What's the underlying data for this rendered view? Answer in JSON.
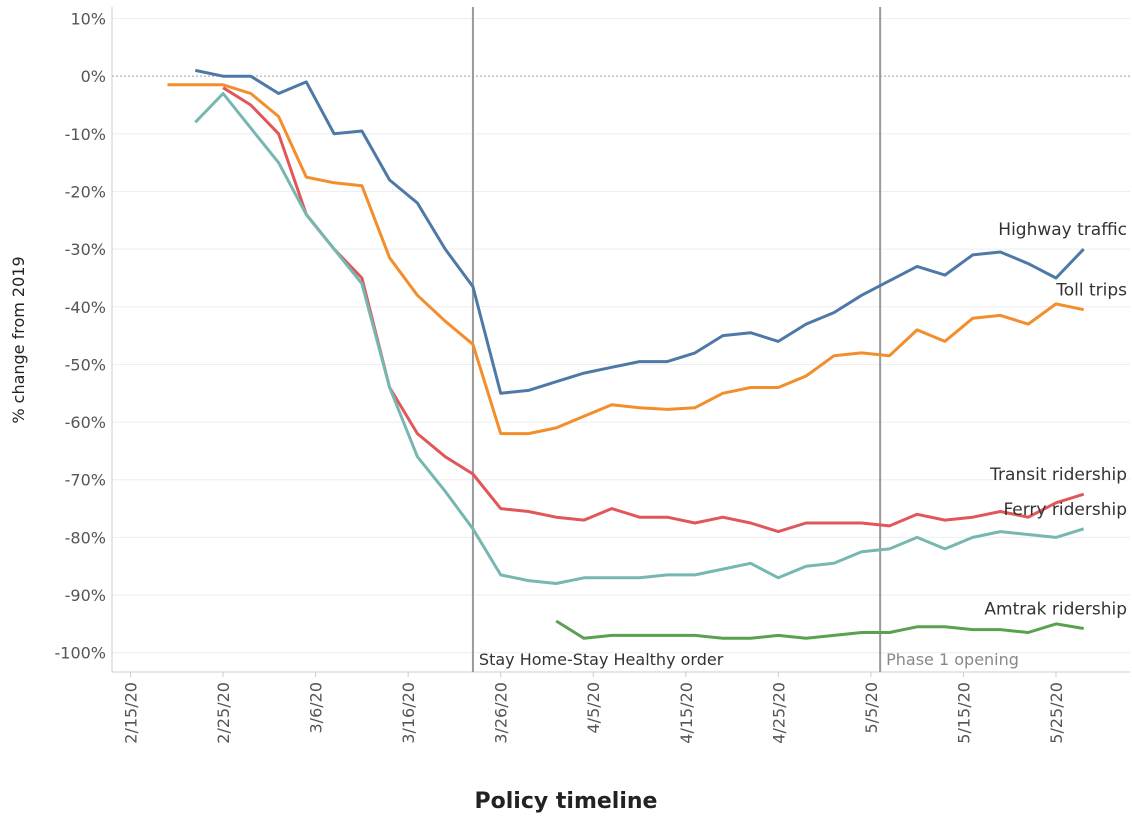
{
  "chart_data": {
    "type": "line",
    "x_label": "Policy timeline",
    "y_label": "% change from 2019",
    "x": [
      "2/19/20",
      "2/22/20",
      "2/25/20",
      "2/28/20",
      "3/2/20",
      "3/5/20",
      "3/8/20",
      "3/11/20",
      "3/14/20",
      "3/17/20",
      "3/20/20",
      "3/23/20",
      "3/26/20",
      "3/29/20",
      "4/1/20",
      "4/4/20",
      "4/7/20",
      "4/10/20",
      "4/13/20",
      "4/16/20",
      "4/19/20",
      "4/22/20",
      "4/25/20",
      "4/28/20",
      "5/1/20",
      "5/4/20",
      "5/7/20",
      "5/10/20",
      "5/13/20",
      "5/16/20",
      "5/19/20",
      "5/22/20",
      "5/25/20",
      "5/28/20"
    ],
    "xlim": [
      "2/13/20",
      "6/2/20"
    ],
    "xticks": [
      "2/15/20",
      "2/25/20",
      "3/6/20",
      "3/16/20",
      "3/26/20",
      "4/5/20",
      "4/15/20",
      "4/25/20",
      "5/5/20",
      "5/15/20",
      "5/25/20"
    ],
    "ylim": [
      -103,
      12
    ],
    "yticks": [
      {
        "value": 10,
        "label": "10%"
      },
      {
        "value": 0,
        "label": "0%"
      },
      {
        "value": -10,
        "label": "-10%"
      },
      {
        "value": -20,
        "label": "-20%"
      },
      {
        "value": -30,
        "label": "-30%"
      },
      {
        "value": -40,
        "label": "-40%"
      },
      {
        "value": -50,
        "label": "-50%"
      },
      {
        "value": -60,
        "label": "-60%"
      },
      {
        "value": -70,
        "label": "-70%"
      },
      {
        "value": -80,
        "label": "-80%"
      },
      {
        "value": -90,
        "label": "-90%"
      },
      {
        "value": -100,
        "label": "-100%"
      }
    ],
    "grid": true,
    "series": [
      {
        "name": "Highway traffic",
        "color": "#4e79a7",
        "values": [
          null,
          1,
          0,
          0,
          -3,
          -1,
          -10,
          -9.5,
          -18,
          -22,
          -30,
          -36.5,
          -55,
          -54.5,
          -53,
          -51.5,
          -50.5,
          -49.5,
          -49.5,
          -48,
          -45,
          -44.5,
          -46,
          -43,
          -41,
          -38,
          -35.5,
          -33,
          -34.5,
          -31,
          -30.5,
          -32.5,
          -35,
          -30
        ]
      },
      {
        "name": "Toll trips",
        "color": "#f28e2b",
        "values": [
          -1.5,
          -1.5,
          -1.5,
          -3,
          -7,
          -17.5,
          -18.5,
          -19,
          -31.5,
          -38,
          -42.5,
          -46.5,
          -62,
          -62,
          -61,
          -59,
          -57,
          -57.5,
          -57.8,
          -57.5,
          -55,
          -54,
          -54,
          -52,
          -48.5,
          -48,
          -48.5,
          -44,
          -46,
          -42,
          -41.5,
          -43,
          -39.5,
          -40.5
        ]
      },
      {
        "name": "Transit ridership",
        "color": "#e15759",
        "values": [
          null,
          null,
          -2,
          -5,
          -10,
          -24,
          -30,
          -35,
          -54,
          -62,
          -66,
          -69,
          -75,
          -75.5,
          -76.5,
          -77,
          -75,
          -76.5,
          -76.5,
          -77.5,
          -76.5,
          -77.5,
          -79,
          -77.5,
          -77.5,
          -77.5,
          -78,
          -76,
          -77,
          -76.5,
          -75.5,
          -76.5,
          -74,
          -72.5
        ]
      },
      {
        "name": "Ferry ridership",
        "color": "#76b7b2",
        "values": [
          null,
          -8,
          -3,
          -9,
          -15,
          -24,
          -30,
          -36,
          -54,
          -66,
          -72,
          -78.5,
          -86.5,
          -87.5,
          -88,
          -87,
          -87,
          -87,
          -86.5,
          -86.5,
          -85.5,
          -84.5,
          -87,
          -85,
          -84.5,
          -82.5,
          -82,
          -80,
          -82,
          -80,
          -79,
          -79.5,
          -80,
          -78.5
        ]
      },
      {
        "name": "Amtrak ridership",
        "color": "#59a14f",
        "values": [
          null,
          null,
          null,
          null,
          null,
          null,
          null,
          null,
          null,
          null,
          null,
          null,
          null,
          null,
          -94.5,
          -97.5,
          -97,
          -97,
          -97,
          -97,
          -97.5,
          -97.5,
          -97,
          -97.5,
          -97,
          -96.5,
          -96.5,
          -95.5,
          -95.5,
          -96,
          -96,
          -96.5,
          -95,
          -95.8
        ]
      }
    ],
    "annotations": [
      {
        "x": "3/23/20",
        "label": "Stay Home-Stay Healthy order"
      },
      {
        "x": "5/6/20",
        "label": "Phase 1 opening"
      }
    ]
  }
}
